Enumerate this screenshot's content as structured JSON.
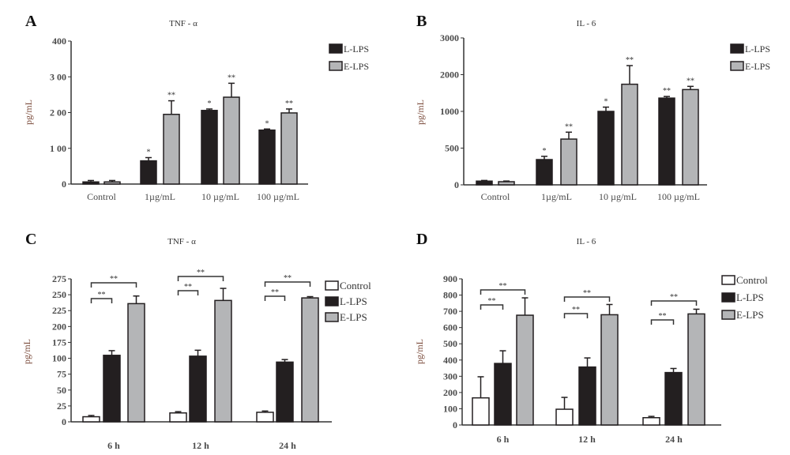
{
  "colors": {
    "control": "#ffffff",
    "l_lps": "#231f20",
    "e_lps": "#b4b5b7",
    "outline": "#231f20",
    "tick_text": "#4a4a4a"
  },
  "chart_data": [
    {
      "panel": "A",
      "type": "bar",
      "title": "TNF - α",
      "ylabel": "pg/mL",
      "xlabel": "",
      "ticks": [
        0,
        100,
        200,
        300,
        400
      ],
      "tick_labels": [
        "0",
        "1 00",
        "2 00",
        "3 00",
        "400"
      ],
      "ylim": [
        0,
        400
      ],
      "grid": false,
      "legend_position": "top-right",
      "categories": [
        "Control",
        "1µg/mL",
        "10 µg/mL",
        "100 µg/mL"
      ],
      "series": [
        {
          "name": "L-LPS",
          "color_key": "l_lps",
          "values": [
            6,
            65,
            206,
            151
          ],
          "error_upper": [
            10,
            74,
            210,
            154
          ],
          "stars": [
            "",
            "*",
            "*",
            "*"
          ]
        },
        {
          "name": "E-LPS",
          "color_key": "e_lps",
          "values": [
            6,
            195,
            243,
            199
          ],
          "error_upper": [
            10,
            233,
            282,
            210
          ],
          "stars": [
            "",
            "**",
            "**",
            "**"
          ]
        }
      ],
      "brackets": []
    },
    {
      "panel": "B",
      "type": "bar",
      "title": "IL - 6",
      "ylabel": "pg/mL",
      "xlabel": "",
      "ticks": [
        0,
        500,
        1000,
        2000,
        3000
      ],
      "tick_labels": [
        "0",
        "500",
        "1000",
        "2000",
        "3000"
      ],
      "ylim": [
        0,
        3000
      ],
      "grid": false,
      "legend_position": "top-right",
      "categories": [
        "Control",
        "1µg/mL",
        "10 µg/mL",
        "100 µg/mL"
      ],
      "series": [
        {
          "name": "L-LPS",
          "color_key": "l_lps",
          "values": [
            51,
            344,
            1000,
            1362
          ],
          "error_upper": [
            60,
            388,
            1116,
            1406
          ],
          "stars": [
            "",
            "*",
            "*",
            "**"
          ]
        },
        {
          "name": "E-LPS",
          "color_key": "e_lps",
          "values": [
            43,
            623,
            1739,
            1594
          ],
          "error_upper": [
            52,
            717,
            2246,
            1681
          ],
          "stars": [
            "",
            "**",
            "**",
            "**"
          ]
        }
      ],
      "brackets": []
    },
    {
      "panel": "C",
      "type": "bar",
      "title": "TNF - α",
      "ylabel": "pg/mL",
      "xlabel": "",
      "ticks": [
        0,
        25,
        50,
        75,
        100,
        175,
        200,
        225,
        250,
        275
      ],
      "tick_labels": [
        "0",
        "25",
        "50",
        "75",
        "100",
        "175",
        "200",
        "225",
        "250",
        "275"
      ],
      "ylim": [
        0,
        275
      ],
      "grid": false,
      "legend_position": "top-right",
      "categories": [
        "6 h",
        "12 h",
        "24 h"
      ],
      "series": [
        {
          "name": "Control",
          "color_key": "control",
          "values": [
            8,
            14,
            15
          ],
          "error_upper": [
            10,
            16,
            17
          ],
          "stars": [
            "",
            "",
            ""
          ]
        },
        {
          "name": "L-LPS",
          "color_key": "l_lps",
          "values": [
            114,
            110,
            94
          ],
          "error_upper": [
            136,
            138,
            98
          ],
          "stars": [
            "",
            "",
            ""
          ]
        },
        {
          "name": "E-LPS",
          "color_key": "e_lps",
          "values": [
            236,
            241,
            245
          ],
          "error_upper": [
            248,
            260,
            247
          ],
          "stars": [
            "",
            "",
            ""
          ]
        }
      ],
      "brackets": [
        {
          "group": 0,
          "from": "Control",
          "to": "L-LPS",
          "label": "**"
        },
        {
          "group": 0,
          "from": "Control",
          "to": "E-LPS",
          "label": "**"
        },
        {
          "group": 1,
          "from": "Control",
          "to": "L-LPS",
          "label": "**"
        },
        {
          "group": 1,
          "from": "Control",
          "to": "E-LPS",
          "label": "**"
        },
        {
          "group": 2,
          "from": "Control",
          "to": "L-LPS",
          "label": "**"
        },
        {
          "group": 2,
          "from": "Control",
          "to": "E-LPS",
          "label": "**"
        }
      ]
    },
    {
      "panel": "D",
      "type": "bar",
      "title": "IL - 6",
      "ylabel": "pg/mL",
      "xlabel": "",
      "ticks": [
        0,
        100,
        200,
        300,
        400,
        500,
        600,
        700,
        800,
        900
      ],
      "tick_labels": [
        "0",
        "100",
        "200",
        "300",
        "400",
        "500",
        "600",
        "700",
        "800",
        "900"
      ],
      "ylim": [
        0,
        900
      ],
      "grid": false,
      "legend_position": "top-right",
      "categories": [
        "6 h",
        "12 h",
        "24 h"
      ],
      "series": [
        {
          "name": "Control",
          "color_key": "control",
          "values": [
            167,
            97,
            45
          ],
          "error_upper": [
            297,
            170,
            53
          ],
          "stars": [
            "",
            "",
            ""
          ]
        },
        {
          "name": "L-LPS",
          "color_key": "l_lps",
          "values": [
            379,
            357,
            323
          ],
          "error_upper": [
            457,
            413,
            348
          ],
          "stars": [
            "",
            "",
            ""
          ]
        },
        {
          "name": "E-LPS",
          "color_key": "e_lps",
          "values": [
            676,
            679,
            684
          ],
          "error_upper": [
            783,
            742,
            713
          ],
          "stars": [
            "",
            "",
            ""
          ]
        }
      ],
      "brackets": [
        {
          "group": 0,
          "from": "Control",
          "to": "L-LPS",
          "label": "**"
        },
        {
          "group": 0,
          "from": "Control",
          "to": "E-LPS",
          "label": "**"
        },
        {
          "group": 1,
          "from": "Control",
          "to": "L-LPS",
          "label": "**"
        },
        {
          "group": 1,
          "from": "Control",
          "to": "E-LPS",
          "label": "**"
        },
        {
          "group": 2,
          "from": "Control",
          "to": "L-LPS",
          "label": "**"
        },
        {
          "group": 2,
          "from": "Control",
          "to": "E-LPS",
          "label": "**"
        }
      ]
    }
  ]
}
